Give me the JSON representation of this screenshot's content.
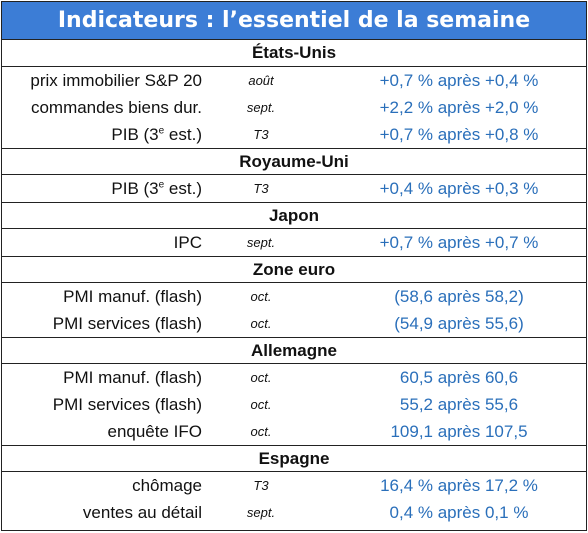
{
  "title": "Indicateurs : l’essentiel de la semaine",
  "sections": [
    {
      "name": "États-Unis",
      "rows": [
        {
          "indicator": "prix immobilier S&P 20",
          "period": "août",
          "value": "+0,7 % après +0,4 %"
        },
        {
          "indicator": "commandes biens dur.",
          "period": "sept.",
          "value": "+2,2 % après +2,0 %"
        },
        {
          "indicator_pre": "PIB (3",
          "indicator_sup": "e",
          "indicator_post": " est.)",
          "period": "T3",
          "value": "+0,7 % après +0,8 %"
        }
      ]
    },
    {
      "name": "Royaume-Uni",
      "rows": [
        {
          "indicator_pre": "PIB (3",
          "indicator_sup": "e",
          "indicator_post": " est.)",
          "period": "T3",
          "value": "+0,4 % après +0,3 %"
        }
      ]
    },
    {
      "name": "Japon",
      "rows": [
        {
          "indicator": "IPC",
          "period": "sept.",
          "value": "+0,7 % après +0,7 %"
        }
      ]
    },
    {
      "name": "Zone euro",
      "rows": [
        {
          "indicator": "PMI manuf. (flash)",
          "period": "oct.",
          "value": "(58,6 après 58,2)"
        },
        {
          "indicator": "PMI services (flash)",
          "period": "oct.",
          "value": "(54,9 après 55,6)"
        }
      ]
    },
    {
      "name": "Allemagne",
      "rows": [
        {
          "indicator": "PMI manuf. (flash)",
          "period": "oct.",
          "value": "60,5 après 60,6"
        },
        {
          "indicator": "PMI services (flash)",
          "period": "oct.",
          "value": "55,2 après 55,6"
        },
        {
          "indicator": "enquête IFO",
          "period": "oct.",
          "value": "109,1 après 107,5"
        }
      ]
    },
    {
      "name": "Espagne",
      "rows": [
        {
          "indicator": "chômage",
          "period": "T3",
          "value": "16,4 % après 17,2 %"
        },
        {
          "indicator": "ventes au détail",
          "period": "sept.",
          "value": "0,4 % après 0,1 %"
        }
      ]
    }
  ],
  "colors": {
    "header_bg": "#3c7dd6",
    "value_text": "#2a6fba"
  }
}
